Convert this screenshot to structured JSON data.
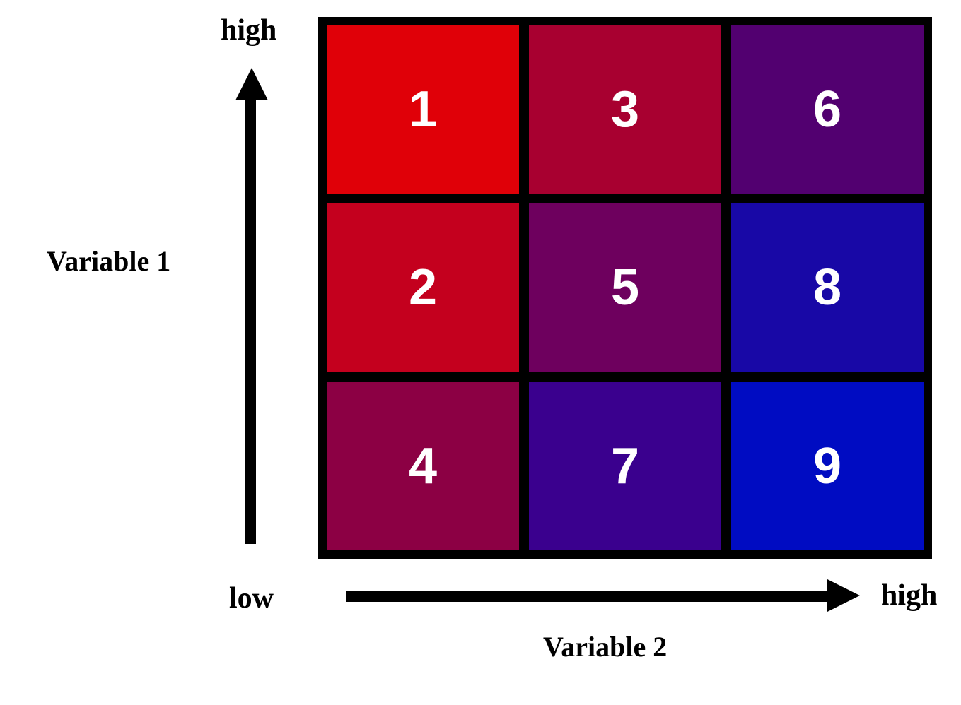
{
  "axes": {
    "y": {
      "high_label": "high",
      "title": "Variable 1"
    },
    "x": {
      "low_label": "low",
      "high_label": "high",
      "title": "Variable 2"
    }
  },
  "grid": {
    "rows": [
      [
        {
          "label": "1",
          "color": "#e00008"
        },
        {
          "label": "3",
          "color": "#a80030"
        },
        {
          "label": "6",
          "color": "#520070"
        }
      ],
      [
        {
          "label": "2",
          "color": "#c4001e"
        },
        {
          "label": "5",
          "color": "#6e005e"
        },
        {
          "label": "8",
          "color": "#1808a6"
        }
      ],
      [
        {
          "label": "4",
          "color": "#8c0044"
        },
        {
          "label": "7",
          "color": "#3a008e"
        },
        {
          "label": "9",
          "color": "#000cc2"
        }
      ]
    ]
  }
}
